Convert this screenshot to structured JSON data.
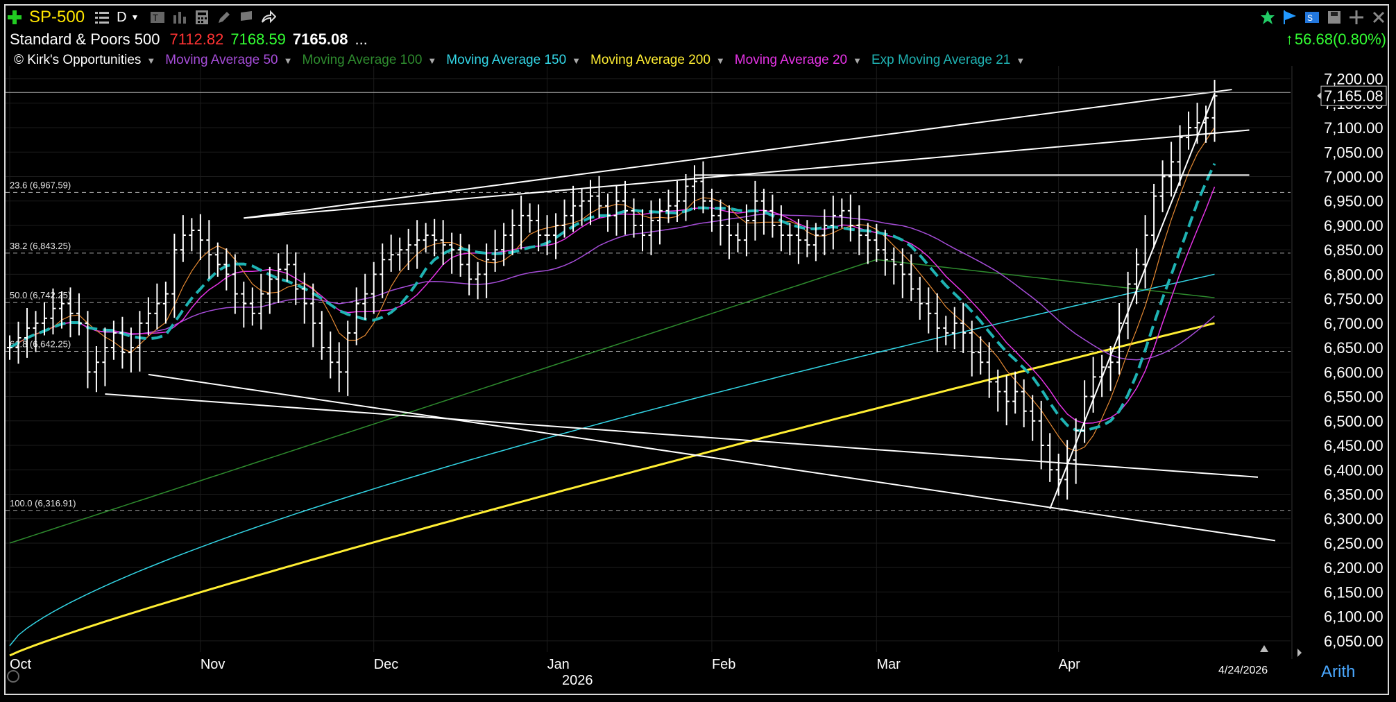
{
  "header": {
    "symbol": "SP-500",
    "interval": "D",
    "name": "Standard & Poors 500",
    "low": "7112.82",
    "high": "7168.59",
    "last": "7165.08",
    "more": "...",
    "change": "56.68(0.80%)"
  },
  "studies": [
    {
      "label": "© Kirk's Opportunities",
      "color": "#ffffff"
    },
    {
      "label": "Moving Average 50",
      "color": "#a64dd9"
    },
    {
      "label": "Moving Average 100",
      "color": "#2e8b2e"
    },
    {
      "label": "Moving Average 150",
      "color": "#33d6e6"
    },
    {
      "label": "Moving Average 200",
      "color": "#ffee33"
    },
    {
      "label": "Moving Average 20",
      "color": "#e633e6"
    },
    {
      "label": "Exp Moving Average 21",
      "color": "#1fb3b3"
    }
  ],
  "footer": {
    "date": "4/24/2026",
    "scale": "Arith",
    "year": "2026"
  },
  "chart_data": {
    "type": "bar",
    "y_ticks": [
      6050,
      6100,
      6150,
      6200,
      6250,
      6300,
      6350,
      6400,
      6450,
      6500,
      6550,
      6600,
      6650,
      6700,
      6750,
      6800,
      6850,
      6900,
      6950,
      7000,
      7050,
      7100,
      7150,
      7200
    ],
    "y_tick_labels": [
      "6,050.00",
      "6,100.00",
      "6,150.00",
      "6,200.00",
      "6,250.00",
      "6,300.00",
      "6,350.00",
      "6,400.00",
      "6,450.00",
      "6,500.00",
      "6,550.00",
      "6,600.00",
      "6,650.00",
      "6,700.00",
      "6,750.00",
      "6,800.00",
      "6,850.00",
      "6,900.00",
      "6,950.00",
      "7,000.00",
      "7,050.00",
      "7,100.00",
      "7,150.00",
      "7,200.00"
    ],
    "ylim": [
      6020,
      7215
    ],
    "last_price_label": "7,165.08",
    "x_labels": [
      {
        "label": "Oct",
        "bar": 0
      },
      {
        "label": "Nov",
        "bar": 22
      },
      {
        "label": "Dec",
        "bar": 42
      },
      {
        "label": "Jan",
        "bar": 62
      },
      {
        "label": "Feb",
        "bar": 81
      },
      {
        "label": "Mar",
        "bar": 100
      },
      {
        "label": "Apr",
        "bar": 121
      }
    ],
    "fib_levels": [
      {
        "label": "23.6 (6,967.59)",
        "value": 6967.59
      },
      {
        "label": "38.2 (6,843.25)",
        "value": 6843.25
      },
      {
        "label": "50.0 (6,742.25)",
        "value": 6742.25
      },
      {
        "label": "61.8 (6,642.25)",
        "value": 6642.25
      },
      {
        "label": "100.0 (6,316.91)",
        "value": 6316.91
      }
    ],
    "closes": [
      6650,
      6670,
      6690,
      6700,
      6710,
      6730,
      6740,
      6720,
      6700,
      6600,
      6620,
      6650,
      6680,
      6640,
      6650,
      6700,
      6720,
      6740,
      6760,
      6850,
      6880,
      6890,
      6870,
      6840,
      6820,
      6800,
      6760,
      6740,
      6720,
      6760,
      6790,
      6810,
      6820,
      6770,
      6740,
      6700,
      6650,
      6620,
      6600,
      6680,
      6740,
      6760,
      6800,
      6830,
      6840,
      6850,
      6860,
      6870,
      6880,
      6870,
      6860,
      6850,
      6820,
      6790,
      6800,
      6830,
      6850,
      6880,
      6900,
      6920,
      6910,
      6880,
      6880,
      6900,
      6920,
      6940,
      6950,
      6960,
      6940,
      6920,
      6950,
      6930,
      6900,
      6880,
      6910,
      6930,
      6940,
      6950,
      6980,
      6990,
      6950,
      6920,
      6900,
      6880,
      6870,
      6910,
      6950,
      6930,
      6900,
      6880,
      6880,
      6870,
      6860,
      6880,
      6900,
      6920,
      6930,
      6900,
      6880,
      6870,
      6850,
      6830,
      6820,
      6800,
      6770,
      6740,
      6720,
      6690,
      6680,
      6700,
      6680,
      6640,
      6620,
      6580,
      6560,
      6540,
      6560,
      6520,
      6500,
      6450,
      6400,
      6380,
      6420,
      6480,
      6550,
      6590,
      6610,
      6620,
      6700,
      6780,
      6820,
      6880,
      6960,
      7000,
      7030,
      7080,
      7100,
      7110,
      7120,
      7165
    ]
  }
}
